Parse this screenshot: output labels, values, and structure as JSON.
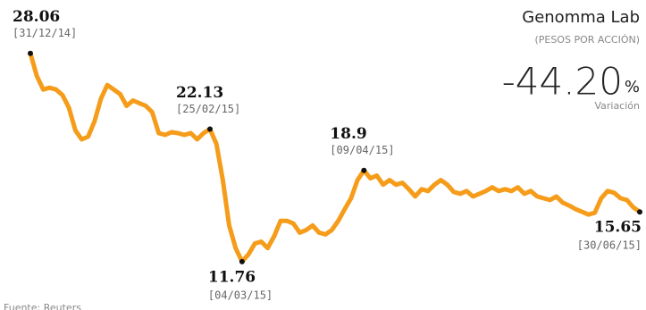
{
  "chart_data": {
    "type": "line",
    "title": "Genomma Lab",
    "subtitle": "(PESOS POR ACCIÓN)",
    "change": "-44.20",
    "change_unit": "%",
    "change_label": "Variación",
    "source": "Fuente: Reuters",
    "color": "#f59c1a",
    "ylim": [
      10,
      30
    ],
    "categories": [
      "[31/12/14]",
      null,
      null,
      null,
      null,
      null,
      null,
      null,
      null,
      null,
      null,
      null,
      null,
      null,
      null,
      null,
      null,
      null,
      null,
      null,
      null,
      null,
      null,
      null,
      null,
      null,
      null,
      null,
      "[25/02/15]",
      null,
      null,
      null,
      null,
      "[04/03/15]",
      null,
      null,
      null,
      null,
      null,
      null,
      null,
      null,
      null,
      null,
      null,
      null,
      null,
      null,
      null,
      null,
      null,
      null,
      "[09/04/15]",
      null,
      null,
      null,
      null,
      null,
      null,
      null,
      null,
      null,
      null,
      null,
      null,
      null,
      null,
      null,
      null,
      null,
      null,
      null,
      null,
      null,
      null,
      null,
      null,
      null,
      null,
      null,
      null,
      null,
      null,
      null,
      null,
      null,
      null,
      null,
      null,
      null,
      null,
      null,
      null,
      null,
      null,
      "[30/06/15]"
    ],
    "values": [
      28.06,
      26.29,
      25.23,
      25.37,
      25.23,
      24.8,
      23.81,
      22.04,
      21.33,
      21.54,
      22.74,
      24.52,
      25.58,
      25.23,
      24.87,
      23.95,
      24.37,
      24.16,
      23.95,
      23.45,
      21.82,
      21.68,
      21.89,
      21.82,
      21.68,
      21.82,
      21.33,
      21.82,
      22.13,
      20.97,
      18.14,
      14.59,
      12.82,
      11.76,
      12.33,
      13.18,
      13.32,
      12.82,
      13.74,
      14.95,
      14.95,
      14.74,
      14.03,
      14.24,
      14.59,
      14.03,
      13.89,
      14.24,
      14.95,
      15.87,
      16.72,
      18.14,
      18.9,
      18.28,
      18.49,
      17.78,
      18.14,
      17.78,
      17.93,
      17.43,
      16.86,
      17.43,
      17.29,
      17.78,
      18.14,
      17.78,
      17.22,
      17.07,
      17.29,
      16.86,
      17.07,
      17.29,
      17.57,
      17.29,
      17.43,
      17.29,
      17.57,
      17.07,
      17.29,
      16.86,
      16.72,
      16.58,
      16.86,
      16.37,
      16.15,
      15.87,
      15.66,
      15.44,
      15.59,
      16.72,
      17.29,
      17.15,
      16.72,
      16.58,
      16.01,
      15.65
    ]
  }
}
